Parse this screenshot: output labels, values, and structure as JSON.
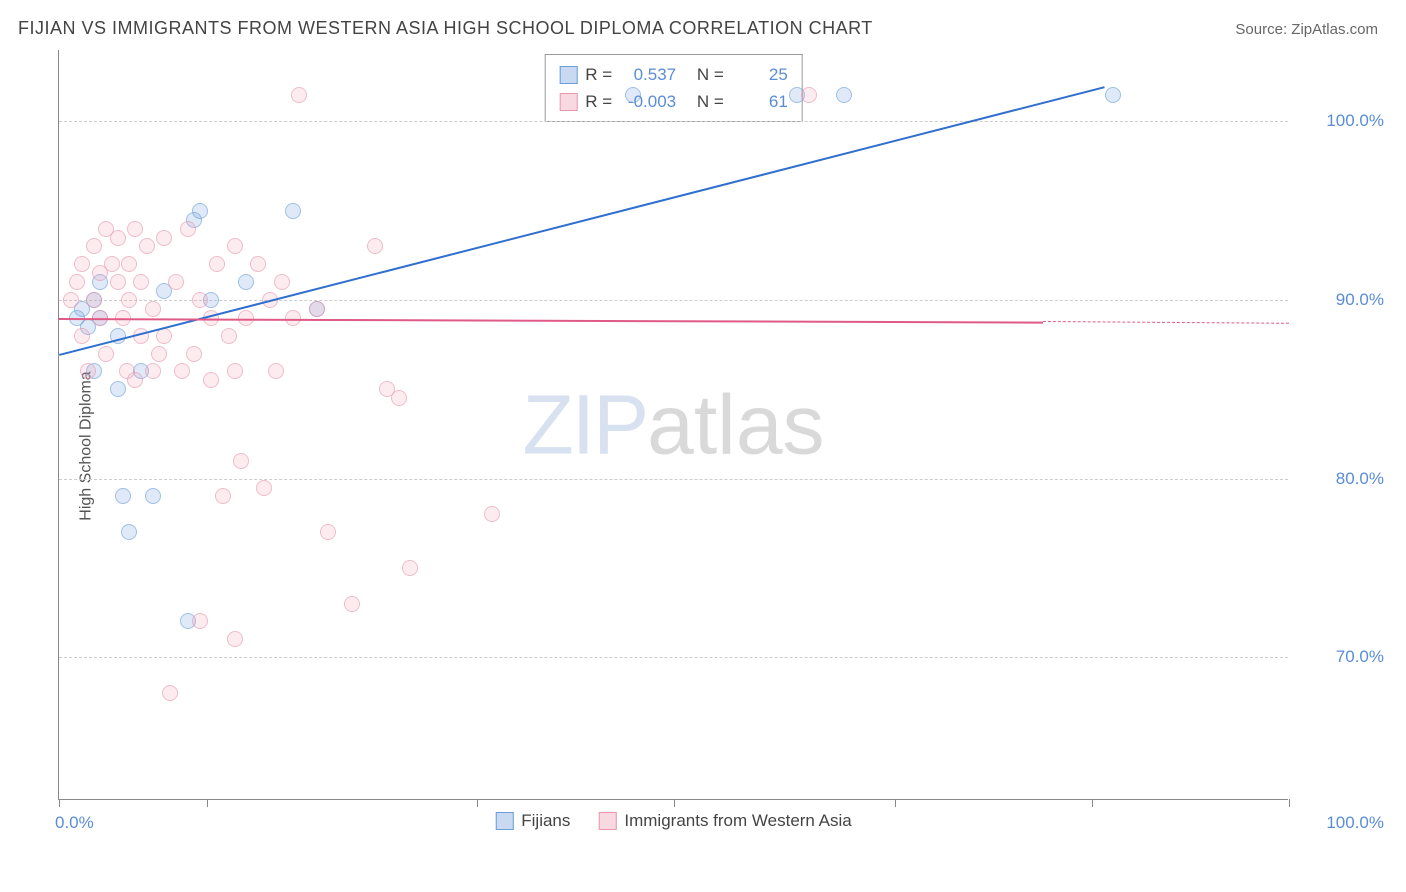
{
  "header": {
    "title": "FIJIAN VS IMMIGRANTS FROM WESTERN ASIA HIGH SCHOOL DIPLOMA CORRELATION CHART",
    "source_prefix": "Source: ",
    "source_name": "ZipAtlas.com"
  },
  "chart": {
    "type": "scatter",
    "ylabel": "High School Diploma",
    "xlim": [
      0,
      105
    ],
    "ylim": [
      62,
      104
    ],
    "ytick_values": [
      70,
      80,
      90,
      100
    ],
    "ytick_labels": [
      "70.0%",
      "80.0%",
      "90.0%",
      "100.0%"
    ],
    "xtick_positions_pct": [
      0,
      12,
      34,
      50,
      68,
      84,
      100
    ],
    "x_axis_labels": {
      "left": "0.0%",
      "right": "100.0%"
    },
    "grid_color": "#cccccc",
    "background_color": "#ffffff",
    "series": [
      {
        "name": "Fijians",
        "color_fill": "rgba(120,160,220,0.35)",
        "color_stroke": "#6a9ed8",
        "class": "blue",
        "R": "0.537",
        "N": "25",
        "trend": {
          "x1_pct": 0,
          "y1": 87,
          "x2_pct": 85,
          "y2": 102,
          "color": "#2f6fd0",
          "width": 2
        },
        "points": [
          {
            "x": 1.5,
            "y": 89
          },
          {
            "x": 2,
            "y": 89.5
          },
          {
            "x": 2.5,
            "y": 88.5
          },
          {
            "x": 3,
            "y": 90
          },
          {
            "x": 3,
            "y": 86
          },
          {
            "x": 3.5,
            "y": 89
          },
          {
            "x": 5,
            "y": 85
          },
          {
            "x": 5.5,
            "y": 79
          },
          {
            "x": 6,
            "y": 77
          },
          {
            "x": 7,
            "y": 86
          },
          {
            "x": 8,
            "y": 79
          },
          {
            "x": 9,
            "y": 90.5
          },
          {
            "x": 11,
            "y": 72
          },
          {
            "x": 11.5,
            "y": 94.5
          },
          {
            "x": 12,
            "y": 95
          },
          {
            "x": 13,
            "y": 90
          },
          {
            "x": 16,
            "y": 91
          },
          {
            "x": 20,
            "y": 95
          },
          {
            "x": 22,
            "y": 89.5
          },
          {
            "x": 49,
            "y": 101.5
          },
          {
            "x": 63,
            "y": 101.5
          },
          {
            "x": 67,
            "y": 101.5
          },
          {
            "x": 90,
            "y": 101.5
          },
          {
            "x": 3.5,
            "y": 91
          },
          {
            "x": 5,
            "y": 88
          }
        ]
      },
      {
        "name": "Immigrants from Western Asia",
        "color_fill": "rgba(240,160,180,0.30)",
        "color_stroke": "#e698ae",
        "class": "pink",
        "R": "-0.003",
        "N": "61",
        "trend": {
          "x1_pct": 0,
          "y1": 89,
          "x2_pct": 80,
          "y2": 88.8,
          "color": "#e05a86",
          "width": 2
        },
        "trend_dashed_extension": {
          "x1_pct": 80,
          "y1": 88.8,
          "x2_pct": 100,
          "y2": 88.7
        },
        "points": [
          {
            "x": 1,
            "y": 90
          },
          {
            "x": 1.5,
            "y": 91
          },
          {
            "x": 2,
            "y": 88
          },
          {
            "x": 2,
            "y": 92
          },
          {
            "x": 2.5,
            "y": 86
          },
          {
            "x": 3,
            "y": 93
          },
          {
            "x": 3,
            "y": 90
          },
          {
            "x": 3.5,
            "y": 91.5
          },
          {
            "x": 3.5,
            "y": 89
          },
          {
            "x": 4,
            "y": 94
          },
          {
            "x": 4,
            "y": 87
          },
          {
            "x": 4.5,
            "y": 92
          },
          {
            "x": 5,
            "y": 91
          },
          {
            "x": 5,
            "y": 93.5
          },
          {
            "x": 5.5,
            "y": 89
          },
          {
            "x": 5.8,
            "y": 86
          },
          {
            "x": 6,
            "y": 92
          },
          {
            "x": 6,
            "y": 90
          },
          {
            "x": 6.5,
            "y": 94
          },
          {
            "x": 6.5,
            "y": 85.5
          },
          {
            "x": 7,
            "y": 88
          },
          {
            "x": 7,
            "y": 91
          },
          {
            "x": 7.5,
            "y": 93
          },
          {
            "x": 8,
            "y": 89.5
          },
          {
            "x": 8,
            "y": 86
          },
          {
            "x": 8.5,
            "y": 87
          },
          {
            "x": 9,
            "y": 93.5
          },
          {
            "x": 9,
            "y": 88
          },
          {
            "x": 9.5,
            "y": 68
          },
          {
            "x": 10,
            "y": 91
          },
          {
            "x": 10.5,
            "y": 86
          },
          {
            "x": 11,
            "y": 94
          },
          {
            "x": 11.5,
            "y": 87
          },
          {
            "x": 12,
            "y": 72
          },
          {
            "x": 12,
            "y": 90
          },
          {
            "x": 13,
            "y": 89
          },
          {
            "x": 13,
            "y": 85.5
          },
          {
            "x": 13.5,
            "y": 92
          },
          {
            "x": 14,
            "y": 79
          },
          {
            "x": 14.5,
            "y": 88
          },
          {
            "x": 15,
            "y": 93
          },
          {
            "x": 15,
            "y": 71
          },
          {
            "x": 15.5,
            "y": 81
          },
          {
            "x": 15,
            "y": 86
          },
          {
            "x": 16,
            "y": 89
          },
          {
            "x": 17,
            "y": 92
          },
          {
            "x": 17.5,
            "y": 79.5
          },
          {
            "x": 18,
            "y": 90
          },
          {
            "x": 18.5,
            "y": 86
          },
          {
            "x": 19,
            "y": 91
          },
          {
            "x": 20,
            "y": 89
          },
          {
            "x": 20.5,
            "y": 101.5
          },
          {
            "x": 22,
            "y": 89.5
          },
          {
            "x": 23,
            "y": 77
          },
          {
            "x": 25,
            "y": 73
          },
          {
            "x": 27,
            "y": 93
          },
          {
            "x": 28,
            "y": 85
          },
          {
            "x": 29,
            "y": 84.5
          },
          {
            "x": 30,
            "y": 75
          },
          {
            "x": 37,
            "y": 78
          },
          {
            "x": 64,
            "y": 101.5
          }
        ]
      }
    ]
  },
  "stats_box": {
    "R_label": "R =",
    "N_label": "N ="
  },
  "legend": {
    "items": [
      "Fijians",
      "Immigrants from Western Asia"
    ]
  },
  "watermark": {
    "part1": "ZIP",
    "part2": "atlas"
  }
}
